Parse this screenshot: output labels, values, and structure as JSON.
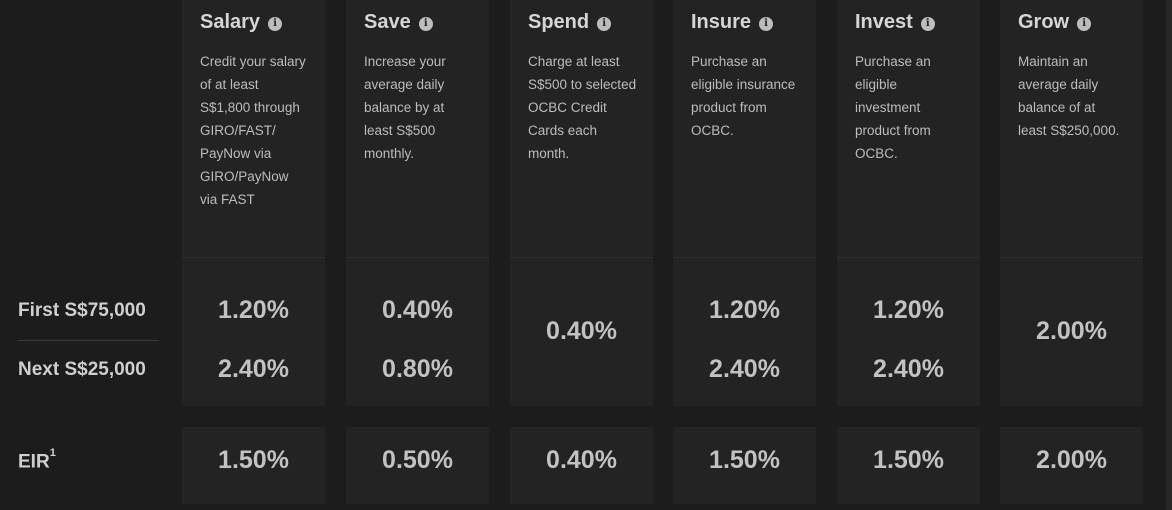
{
  "row_labels": {
    "first": "First S$75,000",
    "next": "Next S$25,000",
    "eir": "EIR",
    "eir_sup": "1"
  },
  "columns": [
    {
      "title": "Salary",
      "desc": "Credit your salary\nof at least\nS$1,800 through\nGIRO/FAST/\nPayNow via\nGIRO/PayNow\nvia FAST",
      "first": "1.20%",
      "next": "2.40%",
      "merged": "",
      "eir": "1.50%"
    },
    {
      "title": "Save",
      "desc": "Increase your\naverage daily\nbalance by at\nleast S$500\nmonthly.",
      "first": "0.40%",
      "next": "0.80%",
      "merged": "",
      "eir": "0.50%"
    },
    {
      "title": "Spend",
      "desc": "Charge at least\nS$500 to selected\nOCBC Credit\nCards each\nmonth.",
      "first": "",
      "next": "",
      "merged": "0.40%",
      "eir": "0.40%"
    },
    {
      "title": "Insure",
      "desc": "Purchase an\neligible insurance\nproduct from\nOCBC.",
      "first": "1.20%",
      "next": "2.40%",
      "merged": "",
      "eir": "1.50%"
    },
    {
      "title": "Invest",
      "desc": "Purchase an\neligible\ninvestment\nproduct from\nOCBC.",
      "first": "1.20%",
      "next": "2.40%",
      "merged": "",
      "eir": "1.50%"
    },
    {
      "title": "Grow",
      "desc": "Maintain an\naverage daily\nbalance of at\nleast S$250,000.",
      "first": "",
      "next": "",
      "merged": "2.00%",
      "eir": "2.00%"
    }
  ],
  "icons": {
    "info": "info-icon"
  },
  "colors": {
    "background": "#1c1c1c",
    "card": "#232323",
    "text": "#c8c8c8"
  }
}
